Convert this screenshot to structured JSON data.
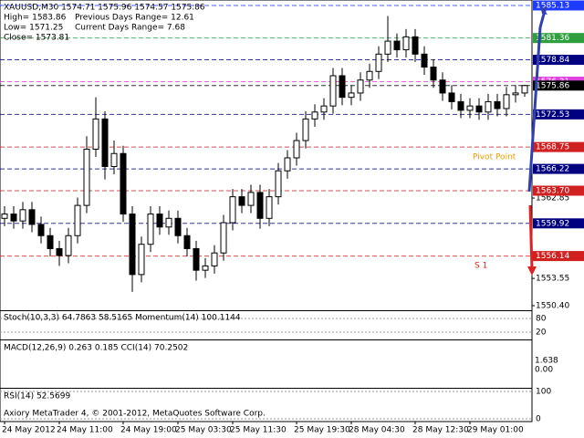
{
  "chart_data": {
    "type": "candlestick",
    "header": [
      "XAUUSD,M30  1574.71 1575.96 1574.57 1575.86",
      "High= 1583.86",
      "Previous Days Range= 12.61",
      "Low= 1571.25",
      "Current Days Range= 7.68",
      "Close= 1573.81"
    ],
    "categories": [
      "24 May 2012",
      null,
      null,
      null,
      null,
      null,
      "24 May 11:00",
      null,
      null,
      null,
      null,
      null,
      null,
      "24 May 19:00",
      null,
      null,
      null,
      null,
      null,
      "25 May 03:30",
      null,
      null,
      null,
      null,
      null,
      "25 May 11:30",
      null,
      null,
      null,
      null,
      null,
      null,
      "25 May 19:30",
      null,
      null,
      null,
      null,
      null,
      "28 May 04:30",
      null,
      null,
      null,
      null,
      null,
      null,
      "28 May 12:30",
      null,
      null,
      null,
      null,
      null,
      "29 May 01:00",
      null,
      null,
      null,
      null,
      null,
      null
    ],
    "open": [
      1560.5,
      1561.0,
      1560.2,
      1561.5,
      1559.8,
      1558.5,
      1557.0,
      1556.2,
      1558.5,
      1562.0,
      1568.5,
      1572.0,
      1566.5,
      1568.0,
      1561.0,
      1554.0,
      1557.5,
      1561.0,
      1559.5,
      1560.5,
      1558.5,
      1557.0,
      1554.5,
      1555.0,
      1556.5,
      1560.0,
      1563.0,
      1562.0,
      1563.5,
      1560.5,
      1563.0,
      1566.0,
      1567.5,
      1569.5,
      1572.0,
      1572.8,
      1573.5,
      1577.0,
      1574.5,
      1575.0,
      1576.5,
      1577.5,
      1579.5,
      1581.0,
      1580.0,
      1581.5,
      1579.5,
      1578.0,
      1576.5,
      1575.0,
      1574.0,
      1573.0,
      1573.5,
      1572.8,
      1574.0,
      1573.2,
      1574.8,
      1575.0
    ],
    "high": [
      1561.9,
      1561.9,
      1562.4,
      1562.4,
      1560.7,
      1559.4,
      1557.9,
      1559.4,
      1562.9,
      1570.0,
      1574.5,
      1572.9,
      1569.5,
      1568.9,
      1561.9,
      1558.4,
      1561.9,
      1561.9,
      1561.4,
      1561.4,
      1559.4,
      1557.9,
      1555.9,
      1557.4,
      1560.9,
      1563.9,
      1563.9,
      1564.4,
      1564.4,
      1563.9,
      1566.9,
      1568.4,
      1570.4,
      1572.9,
      1573.7,
      1574.4,
      1577.9,
      1577.9,
      1575.9,
      1577.4,
      1578.4,
      1580.4,
      1583.9,
      1581.9,
      1582.4,
      1582.4,
      1580.4,
      1578.9,
      1577.4,
      1575.9,
      1574.9,
      1574.4,
      1574.4,
      1574.9,
      1574.9,
      1575.7,
      1575.9,
      1575.96
    ],
    "low": [
      1559.6,
      1559.3,
      1559.3,
      1558.9,
      1557.6,
      1556.1,
      1555.0,
      1555.3,
      1557.6,
      1561.1,
      1567.6,
      1565.0,
      1565.6,
      1560.1,
      1552.0,
      1553.1,
      1556.6,
      1558.6,
      1558.6,
      1557.6,
      1556.1,
      1553.3,
      1553.6,
      1554.1,
      1555.6,
      1559.1,
      1561.1,
      1561.1,
      1559.3,
      1559.6,
      1562.1,
      1565.1,
      1566.6,
      1568.6,
      1571.1,
      1571.9,
      1572.6,
      1573.6,
      1573.6,
      1574.1,
      1575.6,
      1576.6,
      1578.6,
      1579.1,
      1579.1,
      1578.6,
      1577.1,
      1575.6,
      1574.1,
      1573.1,
      1572.1,
      1572.1,
      1571.9,
      1571.9,
      1572.3,
      1572.3,
      1573.9,
      1574.57
    ],
    "close": [
      1561.0,
      1560.2,
      1561.5,
      1559.8,
      1558.5,
      1557.0,
      1556.2,
      1558.5,
      1562.0,
      1568.5,
      1572.0,
      1566.5,
      1568.0,
      1561.0,
      1554.0,
      1557.5,
      1561.0,
      1559.5,
      1560.5,
      1558.5,
      1557.0,
      1554.5,
      1555.0,
      1556.5,
      1560.0,
      1563.0,
      1562.0,
      1563.5,
      1560.5,
      1563.0,
      1566.0,
      1567.5,
      1569.5,
      1572.0,
      1572.8,
      1573.5,
      1577.0,
      1574.5,
      1575.0,
      1576.5,
      1577.5,
      1579.5,
      1581.0,
      1580.0,
      1581.5,
      1579.5,
      1578.0,
      1576.5,
      1575.0,
      1574.0,
      1573.0,
      1573.5,
      1572.8,
      1574.0,
      1573.2,
      1574.8,
      1575.0,
      1575.86
    ],
    "ylim": [
      1549.87,
      1585.76
    ],
    "yticks": [
      1562.85,
      1553.55,
      {
        "value": 1550.4,
        "label": "1550.40"
      }
    ],
    "levels": [
      {
        "value": 1585.13,
        "color": "#1e3cff"
      },
      {
        "value": 1581.36,
        "color": "#2e9e3e"
      },
      {
        "value": 1578.84,
        "color": "#000080"
      },
      {
        "value": 1576.31,
        "color": "#e040e0"
      },
      {
        "value": 1575.86,
        "color": "#000000"
      },
      {
        "value": 1572.53,
        "color": "#000080"
      },
      {
        "value": 1568.75,
        "color": "#d02020"
      },
      {
        "value": 1566.22,
        "color": "#000080"
      },
      {
        "value": {
          "value": 1563.7,
          "label": "1563.70"
        },
        "color": "#d02020"
      },
      {
        "value": 1559.92,
        "color": "#000080"
      },
      {
        "value": 1556.14,
        "color": "#d02020"
      }
    ],
    "annotations": [
      "Pivot Point",
      "S 1"
    ],
    "panes": [
      {
        "label": "Stoch(10,3,3) 64.7863 58.5165  Momentum(14) 100.1144",
        "ylim": [
          0,
          100
        ],
        "yticks": [
          80,
          20
        ]
      },
      {
        "label": "MACD(12,26,9) 0.263 0.185  CCI(14) 70.2502",
        "tick_labels": [
          "1.638",
          "0.00"
        ]
      },
      {
        "label": "RSI(14) 52.5699",
        "ylim": [
          0,
          100
        ],
        "yticks": [
          100,
          0
        ]
      }
    ],
    "footer": "Axiory MetaTrader 4, © 2001-2012, MetaQuotes Software Corp."
  }
}
